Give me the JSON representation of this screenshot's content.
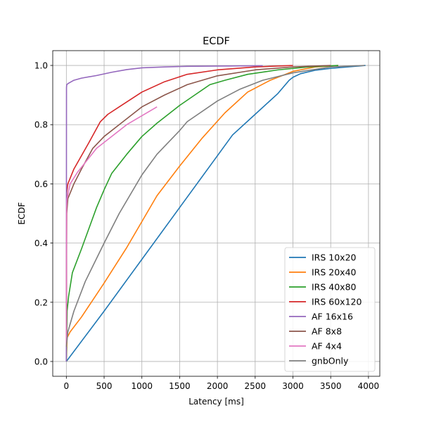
{
  "chart_data": {
    "type": "line",
    "title": "ECDF",
    "xlabel": "Latency [ms]",
    "ylabel": "ECDF",
    "xlim": [
      -180,
      4150
    ],
    "ylim": [
      -0.05,
      1.05
    ],
    "xticks": [
      0,
      500,
      1000,
      1500,
      2000,
      2500,
      3000,
      3500,
      4000
    ],
    "yticks": [
      0.0,
      0.2,
      0.4,
      0.6,
      0.8,
      1.0
    ],
    "xtick_labels": [
      "0",
      "500",
      "1000",
      "1500",
      "2000",
      "2500",
      "3000",
      "3500",
      "4000"
    ],
    "ytick_labels": [
      "0.0",
      "0.2",
      "0.4",
      "0.6",
      "0.8",
      "1.0"
    ],
    "grid": true,
    "legend_position": "lower-right",
    "series": [
      {
        "name": "IRS 10x20",
        "color": "#1f77b4",
        "x": [
          0,
          500,
          1000,
          1500,
          2000,
          2200,
          2500,
          2800,
          2950,
          3000,
          3100,
          3300,
          3500,
          3960
        ],
        "y": [
          0,
          0.17,
          0.345,
          0.52,
          0.695,
          0.765,
          0.835,
          0.905,
          0.95,
          0.96,
          0.972,
          0.984,
          0.99,
          1.0
        ]
      },
      {
        "name": "IRS 20x40",
        "color": "#ff7f0e",
        "x": [
          0,
          10,
          50,
          200,
          500,
          800,
          1200,
          1500,
          1800,
          2100,
          2400,
          2700,
          3000,
          3300,
          3600
        ],
        "y": [
          0,
          0.08,
          0.1,
          0.15,
          0.265,
          0.385,
          0.56,
          0.66,
          0.755,
          0.84,
          0.91,
          0.95,
          0.98,
          0.995,
          1.0
        ]
      },
      {
        "name": "IRS 40x80",
        "color": "#2ca02c",
        "x": [
          0,
          10,
          30,
          80,
          200,
          400,
          500,
          600,
          800,
          1000,
          1200,
          1500,
          1700,
          1900,
          2100,
          2400,
          2800,
          3200,
          3600
        ],
        "y": [
          0,
          0.17,
          0.22,
          0.3,
          0.38,
          0.52,
          0.58,
          0.635,
          0.7,
          0.76,
          0.805,
          0.865,
          0.9,
          0.935,
          0.95,
          0.97,
          0.985,
          0.995,
          1.0
        ]
      },
      {
        "name": "IRS 60x120",
        "color": "#d62728",
        "x": [
          0,
          5,
          20,
          100,
          300,
          450,
          550,
          700,
          1000,
          1300,
          1600,
          2000,
          2500,
          3000
        ],
        "y": [
          0.05,
          0.57,
          0.6,
          0.65,
          0.74,
          0.81,
          0.835,
          0.86,
          0.91,
          0.945,
          0.97,
          0.985,
          0.995,
          1.0
        ]
      },
      {
        "name": "AF 16x16",
        "color": "#9467bd",
        "x": [
          0,
          2,
          5,
          30,
          100,
          200,
          400,
          600,
          800,
          1000,
          1300,
          1600,
          2000,
          2600
        ],
        "y": [
          0,
          0.925,
          0.935,
          0.94,
          0.95,
          0.957,
          0.966,
          0.977,
          0.986,
          0.992,
          0.995,
          0.997,
          0.998,
          0.999
        ]
      },
      {
        "name": "AF 8x8",
        "color": "#8c564b",
        "x": [
          0,
          5,
          20,
          100,
          200,
          350,
          500,
          700,
          1000,
          1300,
          1600,
          2000,
          2500,
          3000,
          3500
        ],
        "y": [
          0.05,
          0.5,
          0.55,
          0.6,
          0.65,
          0.72,
          0.76,
          0.8,
          0.86,
          0.9,
          0.935,
          0.965,
          0.985,
          0.995,
          1.0
        ]
      },
      {
        "name": "AF 4x4",
        "color": "#e377c2",
        "x": [
          0,
          3,
          10,
          50,
          150,
          400,
          800,
          1200
        ],
        "y": [
          0.05,
          0.52,
          0.55,
          0.6,
          0.64,
          0.72,
          0.8,
          0.86
        ]
      },
      {
        "name": "gnbOnly",
        "color": "#7f7f7f",
        "x": [
          0,
          20,
          100,
          250,
          500,
          700,
          1000,
          1200,
          1500,
          1600,
          2000,
          2300,
          2600,
          3000,
          3500,
          3950
        ],
        "y": [
          0.05,
          0.1,
          0.17,
          0.27,
          0.4,
          0.5,
          0.63,
          0.7,
          0.78,
          0.81,
          0.88,
          0.92,
          0.95,
          0.975,
          0.995,
          1.0
        ]
      }
    ]
  }
}
